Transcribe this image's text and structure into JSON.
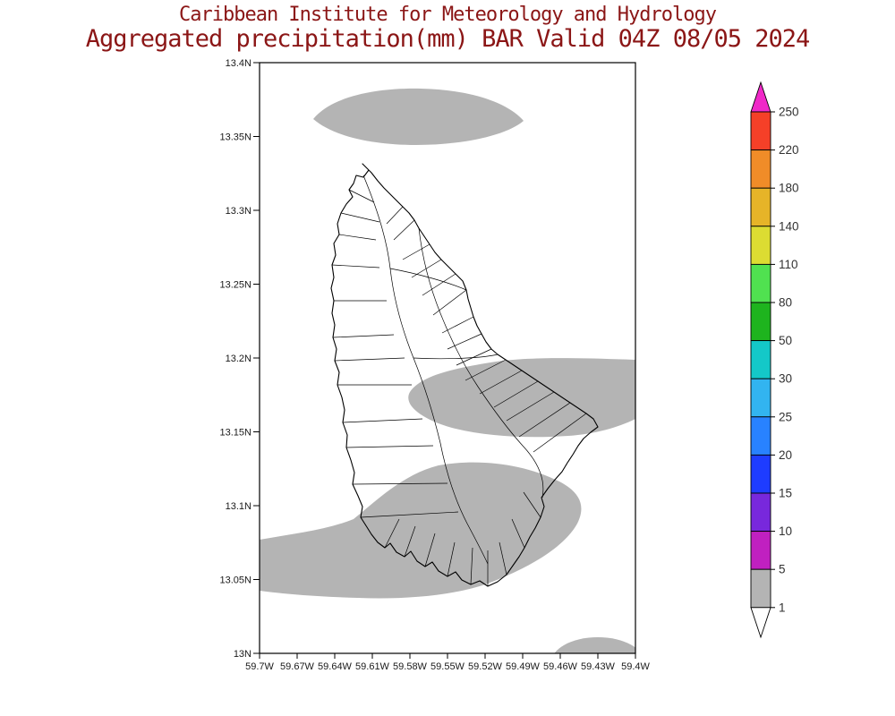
{
  "title": {
    "line1": "Caribbean Institute for Meteorology and Hydrology",
    "line2": "Aggregated precipitation(mm) BAR Valid 04Z 08/05 2024"
  },
  "map_info": {
    "variable": "Aggregated precipitation",
    "units": "mm",
    "region_code": "BAR",
    "valid_time": "04Z 08/05 2024",
    "shaded_value_range_mm": "1-5"
  },
  "axes": {
    "y_ticks": [
      {
        "label": "13.4N",
        "lat": 13.4
      },
      {
        "label": "13.35N",
        "lat": 13.35
      },
      {
        "label": "13.3N",
        "lat": 13.3
      },
      {
        "label": "13.25N",
        "lat": 13.25
      },
      {
        "label": "13.2N",
        "lat": 13.2
      },
      {
        "label": "13.15N",
        "lat": 13.15
      },
      {
        "label": "13.1N",
        "lat": 13.1
      },
      {
        "label": "13.05N",
        "lat": 13.05
      },
      {
        "label": "13N",
        "lat": 13.0
      }
    ],
    "x_ticks": [
      {
        "label": "59.7W",
        "lon": 59.7
      },
      {
        "label": "59.67W",
        "lon": 59.67
      },
      {
        "label": "59.64W",
        "lon": 59.64
      },
      {
        "label": "59.61W",
        "lon": 59.61
      },
      {
        "label": "59.58W",
        "lon": 59.58
      },
      {
        "label": "59.55W",
        "lon": 59.55
      },
      {
        "label": "59.52W",
        "lon": 59.52
      },
      {
        "label": "59.49W",
        "lon": 59.49
      },
      {
        "label": "59.46W",
        "lon": 59.46
      },
      {
        "label": "59.43W",
        "lon": 59.43
      },
      {
        "label": "59.4W",
        "lon": 59.4
      }
    ]
  },
  "colorbar": {
    "boundary_labels_top_to_bottom": [
      "250",
      "220",
      "180",
      "140",
      "110",
      "80",
      "50",
      "30",
      "25",
      "20",
      "15",
      "10",
      "5",
      "1"
    ],
    "segment_colors_bottom_to_top": [
      "#b4b4b4",
      "#c020c0",
      "#7828dc",
      "#1e3cff",
      "#2882ff",
      "#32b4f0",
      "#14c8c8",
      "#1eb41e",
      "#50e150",
      "#dcdc32",
      "#e6b428",
      "#f08c28",
      "#f54028"
    ],
    "arrow_bottom_color": "#ffffff",
    "arrow_top_color": "#f028c8"
  },
  "colors": {
    "title_text": "#8b1616",
    "shade_1_5": "#b4b4b4",
    "axis_text": "#1a1a1a",
    "cbar_text": "#323232"
  }
}
